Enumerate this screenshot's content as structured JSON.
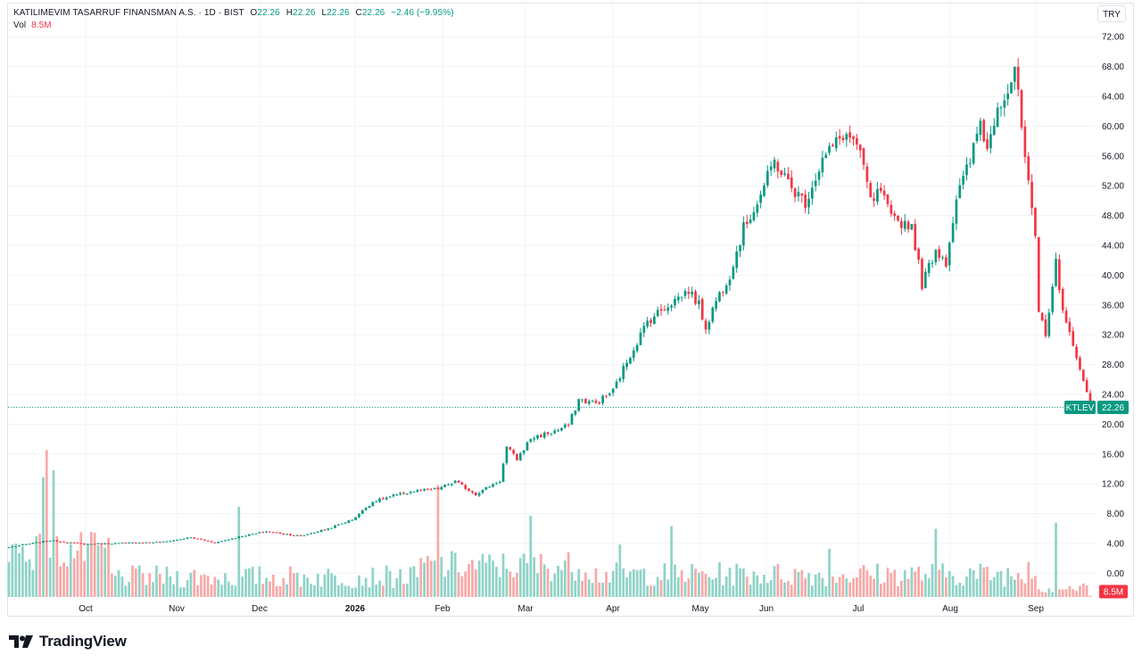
{
  "legend": {
    "symbol_name": "KATILIMEVIM TASARRUF FINANSMAN A.S.",
    "interval": "1D",
    "exchange": "BIST",
    "o_label": "O",
    "o_value": "22.26",
    "h_label": "H",
    "h_value": "22.26",
    "l_label": "L",
    "l_value": "22.26",
    "c_label": "C",
    "c_value": "22.26",
    "change": "−2.46 (−9.95%)",
    "vol_label": "Vol",
    "vol_value": "8.5M"
  },
  "currency_button": "TRY",
  "brand": {
    "name": "TradingView"
  },
  "colors": {
    "up": "#089981",
    "down": "#f23645",
    "vol_up": "#8fd3c7",
    "vol_down": "#f7a9a7",
    "grid": "#f0f3fa",
    "vol_badge": "#f23645"
  },
  "chart_data": {
    "type": "candlestick",
    "symbol": "KTLEV",
    "last_price": 22.26,
    "last_price_label": "22.26",
    "last_volume_label": "8.5M",
    "price_axis": {
      "ticks": [
        72,
        68,
        64,
        60,
        56,
        52,
        48,
        44,
        40,
        36,
        32,
        28,
        24,
        20,
        16,
        12,
        8,
        4,
        0
      ],
      "tick_labels": [
        "72.00",
        "68.00",
        "64.00",
        "60.00",
        "56.00",
        "52.00",
        "48.00",
        "44.00",
        "40.00",
        "36.00",
        "32.00",
        "28.00",
        "24.00",
        "20.00",
        "16.00",
        "12.00",
        "8.00",
        "4.00",
        "0.00"
      ]
    },
    "time_axis": {
      "labels": [
        "Oct",
        "Nov",
        "Dec",
        "2026",
        "Feb",
        "Mar",
        "Apr",
        "May",
        "Jun",
        "Jul",
        "Aug",
        "Sep"
      ],
      "bold": [
        "2026"
      ]
    },
    "anchors": [
      [
        0,
        3.5
      ],
      [
        12,
        4.4
      ],
      [
        22,
        3.9
      ],
      [
        45,
        4.2
      ],
      [
        53,
        4.8
      ],
      [
        60,
        4.1
      ],
      [
        68,
        5.0
      ],
      [
        75,
        5.6
      ],
      [
        85,
        5.0
      ],
      [
        93,
        6.0
      ],
      [
        100,
        7.2
      ],
      [
        106,
        9.6
      ],
      [
        112,
        10.4
      ],
      [
        118,
        11.0
      ],
      [
        125,
        11.3
      ],
      [
        130,
        12.3
      ],
      [
        136,
        10.6
      ],
      [
        140,
        11.7
      ],
      [
        143,
        12.4
      ],
      [
        145,
        16.9
      ],
      [
        148,
        15.3
      ],
      [
        152,
        18.1
      ],
      [
        160,
        19.2
      ],
      [
        163,
        19.9
      ],
      [
        166,
        23.3
      ],
      [
        171,
        22.8
      ],
      [
        176,
        24.5
      ],
      [
        180,
        28.4
      ],
      [
        186,
        33.8
      ],
      [
        191,
        35.7
      ],
      [
        198,
        38.0
      ],
      [
        201,
        36.0
      ],
      [
        203,
        33.0
      ],
      [
        206,
        36.6
      ],
      [
        210,
        40.1
      ],
      [
        214,
        46.3
      ],
      [
        218,
        49.8
      ],
      [
        223,
        55.3
      ],
      [
        228,
        51.7
      ],
      [
        232,
        49.8
      ],
      [
        237,
        55.5
      ],
      [
        243,
        58.9
      ],
      [
        246,
        58.2
      ],
      [
        249,
        54.6
      ],
      [
        251,
        49.8
      ],
      [
        254,
        51.3
      ],
      [
        257,
        47.5
      ],
      [
        263,
        46.7
      ],
      [
        266,
        38.8
      ],
      [
        270,
        43.5
      ],
      [
        273,
        41.8
      ],
      [
        276,
        50.3
      ],
      [
        280,
        55.3
      ],
      [
        283,
        60.7
      ],
      [
        285,
        56.8
      ],
      [
        288,
        63.0
      ],
      [
        291,
        64.8
      ],
      [
        293,
        67.9
      ],
      [
        296,
        55.7
      ],
      [
        299,
        44.6
      ],
      [
        300,
        35.0
      ],
      [
        302,
        32.3
      ],
      [
        305,
        41.6
      ],
      [
        306,
        37.8
      ],
      [
        308,
        34.0
      ],
      [
        310,
        30.2
      ],
      [
        312,
        27.1
      ],
      [
        314,
        24.7
      ],
      [
        315,
        22.26
      ]
    ],
    "session_start": "2025-09-05",
    "bar_count": 316,
    "volume_peaks_millions": [
      16.8,
      14.5,
      13.7,
      10.3,
      12.8,
      9.3,
      8.1,
      5.5,
      4.0,
      7.8,
      6.0,
      8.5
    ]
  }
}
